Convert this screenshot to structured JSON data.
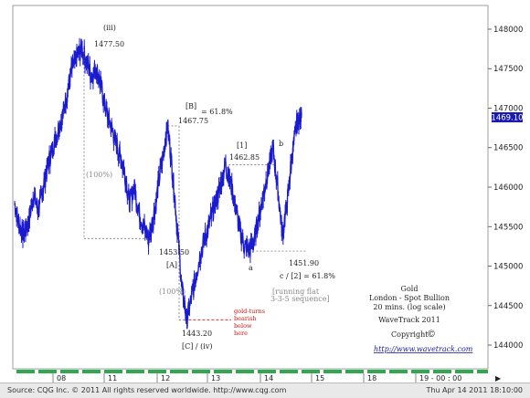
{
  "chart_data": {
    "type": "line",
    "instrument": "Gold",
    "subtitle": "London - Spot Bullion",
    "interval_label": "20 mins. (log scale)",
    "publisher": "WaveTrack 2011",
    "copyright_label": "Copyright",
    "copyright_symbol": "©",
    "url": "http://www.wavetrack.com",
    "last_price": "1469.10",
    "ylim": [
      1437,
      1483
    ],
    "yticks": [
      {
        "v": 1480,
        "label": "148000"
      },
      {
        "v": 1475,
        "label": "147500"
      },
      {
        "v": 1470,
        "label": "147000"
      },
      {
        "v": 1465,
        "label": "146500"
      },
      {
        "v": 1460,
        "label": "146000"
      },
      {
        "v": 1455,
        "label": "145500"
      },
      {
        "v": 1450,
        "label": "145000"
      },
      {
        "v": 1445,
        "label": "144500"
      },
      {
        "v": 1440,
        "label": "144000"
      }
    ],
    "xticks": [
      "08",
      "11",
      "12",
      "13",
      "14",
      "15",
      "18",
      "19 - 00 : 00"
    ],
    "series": [
      {
        "values": [
          1458,
          1455,
          1454,
          1456,
          1459,
          1457,
          1460,
          1463,
          1465,
          1467,
          1469,
          1472,
          1475,
          1476.5,
          1477.5,
          1476,
          1474,
          1475,
          1473,
          1470,
          1468,
          1466,
          1464,
          1462,
          1458,
          1460,
          1457,
          1455,
          1453.5,
          1456,
          1460,
          1464,
          1467.75,
          1462,
          1455,
          1447,
          1443.2,
          1446,
          1449,
          1452,
          1454,
          1456,
          1458,
          1460,
          1462.85,
          1461,
          1458,
          1455,
          1452.5,
          1451.9,
          1453,
          1456,
          1459,
          1462,
          1465,
          1460,
          1454,
          1458,
          1464,
          1468,
          1469.1
        ]
      }
    ],
    "annotations": {
      "wave_iii": "(iii)",
      "price_1477": "1477.50",
      "pct_100_top": "(100%)",
      "wave_B": "[B]",
      "fib_B": "= 61.8%",
      "price_1467": "1467.75",
      "price_1453": "1453.50",
      "wave_A": "[A]",
      "pct_100_bot": "(100%)",
      "price_1443": "1443.20",
      "wave_C_iv": "[C] / (iv)",
      "red_note_1": "gold-turns",
      "red_note_2": "bearish",
      "red_note_3": "below",
      "red_note_4": "here",
      "wave_1": "[1]",
      "price_1462": "1462.85",
      "wave_b": "b",
      "wave_a": "a",
      "price_1451": "1451.90",
      "fib_c2": "c / [2] = 61.8%",
      "flat_1": "[running flat",
      "flat_2": "3-3-5 sequence]"
    }
  },
  "footer": {
    "source": "Source: CQG Inc. © 2011 All rights reserved worldwide. http://www.cqg.com",
    "timestamp": "Thu Apr 14 2011 18:10:00"
  }
}
